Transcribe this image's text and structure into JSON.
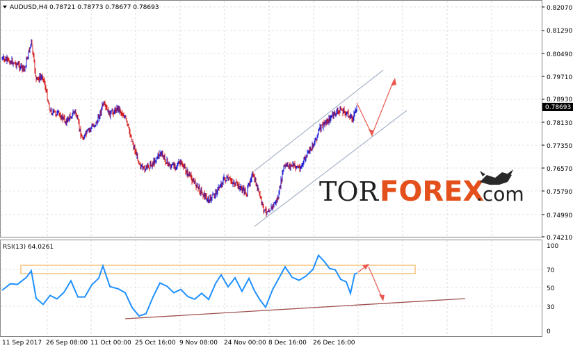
{
  "main_chart": {
    "header": "AUDUSD,H4  0.78721 0.78773 0.78677 0.78693",
    "price_labels": [
      "0.82070",
      "0.81290",
      "0.80490",
      "0.79710",
      "0.78930",
      "0.78130",
      "0.77350",
      "0.76570",
      "0.75790",
      "0.74990",
      "0.74210"
    ],
    "current_price": "0.78693",
    "colors": {
      "bull": "#1f1fd6",
      "bear": "#d61f1f",
      "channel": "#a8b4c8",
      "arrow": "#e85a4f",
      "grid": "#c8c8c8"
    }
  },
  "rsi_panel": {
    "header": "RSI(13) 64.0261",
    "levels": [
      "100",
      "70",
      "50",
      "30",
      "0"
    ],
    "colors": {
      "line": "#1e90ff",
      "support": "#a05050",
      "zone": "#f5c27a",
      "arrow": "#e85a4f"
    }
  },
  "time_axis": {
    "labels": [
      "11 Sep 2017",
      "26 Sep 08:00",
      "11 Oct 00:00",
      "25 Oct 16:00",
      "9 Nov 08:00",
      "24 Nov 00:00",
      "8 Dec 16:00",
      "26 Dec 16:00"
    ]
  },
  "watermark": {
    "tor": "TOR",
    "forex": "FOREX",
    ".com": ".com"
  }
}
